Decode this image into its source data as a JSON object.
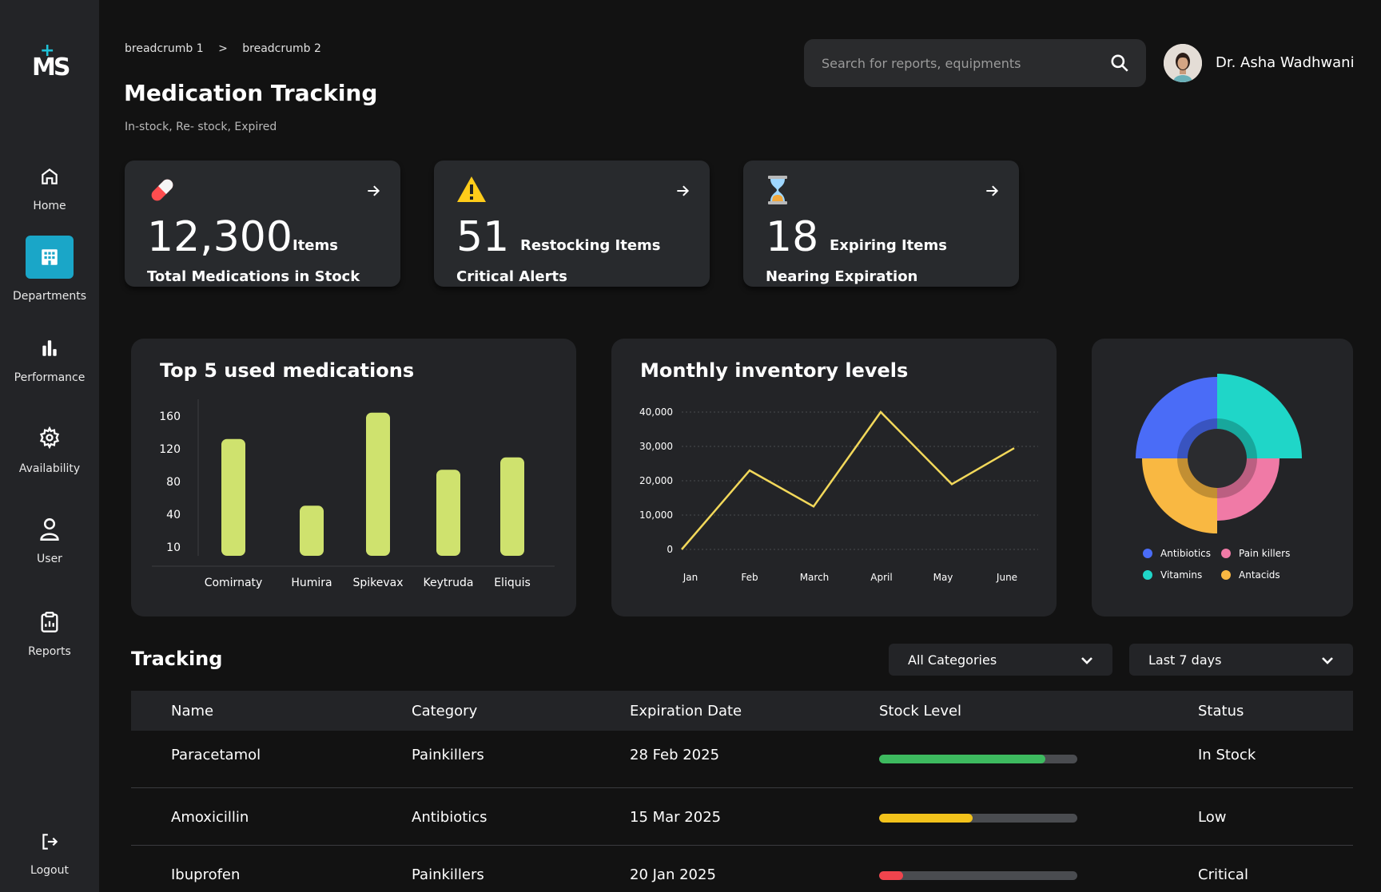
{
  "sidebar": {
    "logo_text": "MS",
    "items": [
      {
        "label": "Home",
        "icon": "home-icon"
      },
      {
        "label": "Departments",
        "icon": "building-icon",
        "active": true
      },
      {
        "label": "Performance",
        "icon": "bar-chart-icon"
      },
      {
        "label": "Availability",
        "icon": "gear-icon"
      },
      {
        "label": "User",
        "icon": "user-icon"
      },
      {
        "label": "Reports",
        "icon": "clipboard-icon"
      }
    ],
    "logout_label": "Logout"
  },
  "breadcrumb": [
    "breadcrumb 1",
    ">",
    "breadcrumb 2"
  ],
  "header": {
    "title": "Medication Tracking",
    "subtitle": "In-stock, Re- stock, Expired",
    "search_placeholder": "Search for reports, equipments",
    "user_name": "Dr. Asha Wadhwani"
  },
  "stats": [
    {
      "icon": "pill-icon",
      "glyph": "💊",
      "value": "12,300",
      "unit": "Items",
      "label": "Total Medications in Stock"
    },
    {
      "icon": "warning-icon",
      "glyph": "⚠",
      "value": "51",
      "unit": "Restocking Items",
      "label": "Critical Alerts"
    },
    {
      "icon": "hourglass-icon",
      "glyph": "⌛",
      "value": "18",
      "unit": "Expiring Items",
      "label": "Nearing Expiration"
    }
  ],
  "chart_data": [
    {
      "type": "bar",
      "title": "Top 5 used medications",
      "categories": [
        "Comirnaty",
        "Humira",
        "Spikevax",
        "Keytruda",
        "Eliquis"
      ],
      "values": [
        133,
        57,
        163,
        98,
        112
      ],
      "y_ticks": [
        "160",
        "120",
        "80",
        "40",
        "10"
      ],
      "ylim": [
        0,
        170
      ],
      "color": "#cfe26e"
    },
    {
      "type": "line",
      "title": "Monthly inventory levels",
      "categories": [
        "Jan",
        "Feb",
        "March",
        "April",
        "May",
        "June"
      ],
      "values": [
        0,
        23000,
        12500,
        40000,
        19000,
        29500
      ],
      "y_ticks": [
        "40,000",
        "30,000",
        "20,000",
        "10,000",
        "0"
      ],
      "ylim": [
        0,
        40000
      ],
      "color": "#f2d85a",
      "grid": true
    },
    {
      "type": "pie",
      "series": [
        {
          "name": "Antibiotics",
          "color": "#4a6cf7"
        },
        {
          "name": "Pain killers",
          "color": "#f07aa6"
        },
        {
          "name": "Vitamins",
          "color": "#1fd6c8"
        },
        {
          "name": "Antacids",
          "color": "#f9b842"
        }
      ],
      "legend": "bottom"
    }
  ],
  "tracking": {
    "title": "Tracking",
    "category_filter": "All Categories",
    "date_filter": "Last 7 days",
    "columns": [
      "Name",
      "Category",
      "Expiration Date",
      "Stock Level",
      "Status"
    ],
    "rows": [
      {
        "name": "Paracetamol",
        "category": "Painkillers",
        "expiration": "28 Feb 2025",
        "stock": 0.84,
        "stock_color": "#3dba5f",
        "status": "In Stock"
      },
      {
        "name": "Amoxicillin",
        "category": "Antibiotics",
        "expiration": "15 Mar 2025",
        "stock": 0.47,
        "stock_color": "#f2c21b",
        "status": "Low"
      },
      {
        "name": "Ibuprofen",
        "category": "Painkillers",
        "expiration": "20 Jan 2025",
        "stock": 0.12,
        "stock_color": "#f0444d",
        "status": "Critical"
      }
    ]
  }
}
